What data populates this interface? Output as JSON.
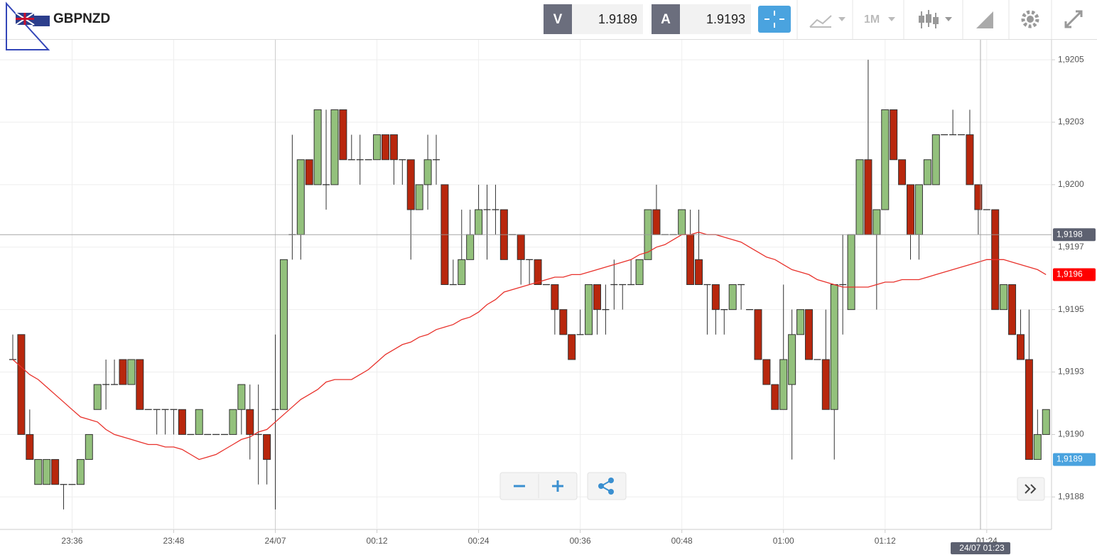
{
  "header": {
    "symbol": "GBPNZD",
    "bid_label": "V",
    "bid": 1.9189,
    "ask_label": "A",
    "ask": 1.9193,
    "timeframe": "1M"
  },
  "chart_data": {
    "type": "candlestick",
    "categories": [
      null,
      null,
      null,
      null,
      null,
      null,
      null,
      "23:36",
      null,
      null,
      null,
      null,
      null,
      null,
      null,
      null,
      null,
      null,
      null,
      "23:48",
      null,
      null,
      null,
      null,
      null,
      null,
      null,
      null,
      null,
      null,
      null,
      "24/07",
      null,
      null,
      null,
      null,
      null,
      null,
      null,
      null,
      null,
      null,
      null,
      "00:12",
      null,
      null,
      null,
      null,
      null,
      null,
      null,
      null,
      null,
      null,
      null,
      "00:24",
      null,
      null,
      null,
      null,
      null,
      null,
      null,
      null,
      null,
      null,
      null,
      "00:36",
      null,
      null,
      null,
      null,
      null,
      null,
      null,
      null,
      null,
      null,
      null,
      "00:48",
      null,
      null,
      null,
      null,
      null,
      null,
      null,
      null,
      null,
      null,
      null,
      "01:00",
      null,
      null,
      null,
      null,
      null,
      null,
      null,
      null,
      null,
      null,
      null,
      "01:12",
      null,
      null,
      null,
      null,
      null,
      null,
      null,
      null,
      null,
      null,
      null,
      "01:24",
      null,
      null,
      null,
      null,
      null,
      null,
      null
    ],
    "open": [
      1.9193,
      1.9194,
      1.919,
      1.9188,
      1.9188,
      1.9189,
      1.9188,
      1.9188,
      1.9188,
      1.9189,
      1.9191,
      1.9192,
      1.9192,
      1.9193,
      1.9192,
      1.9193,
      1.9191,
      1.9191,
      1.9191,
      1.9191,
      1.9191,
      1.919,
      1.919,
      1.919,
      1.919,
      1.919,
      1.919,
      1.9191,
      1.9191,
      1.919,
      1.919,
      1.9191,
      1.9191,
      1.9198,
      1.9198,
      1.9201,
      1.92,
      1.92,
      1.92,
      1.9203,
      1.9201,
      1.9201,
      1.9201,
      1.9201,
      1.9202,
      1.9202,
      1.9201,
      1.9201,
      1.9199,
      1.92,
      1.9201,
      1.92,
      1.9196,
      1.9196,
      1.9197,
      1.9198,
      1.9199,
      1.9199,
      1.9199,
      1.9198,
      1.9198,
      1.9197,
      1.9197,
      1.9196,
      1.9196,
      1.9195,
      1.9194,
      1.9194,
      1.9194,
      1.9196,
      1.9195,
      1.9196,
      1.9196,
      1.9196,
      1.9196,
      1.9197,
      1.9199,
      1.9198,
      1.9198,
      1.9198,
      1.9198,
      1.9197,
      1.9196,
      1.9196,
      1.9195,
      1.9195,
      1.9196,
      1.9195,
      1.9195,
      1.9193,
      1.9192,
      1.9191,
      1.9192,
      1.9194,
      1.9195,
      1.9193,
      1.9193,
      1.9191,
      1.9196,
      1.9195,
      1.9198,
      1.9201,
      1.9198,
      1.9199,
      1.9203,
      1.9201,
      1.92,
      1.9198,
      1.92,
      1.92,
      1.9202,
      1.9202,
      1.9202,
      1.9202,
      1.92,
      1.9199,
      1.9199,
      1.9195,
      1.9196,
      1.9194,
      1.9193,
      1.9189,
      1.919
    ],
    "high": [
      1.9194,
      1.9194,
      1.9191,
      1.9189,
      1.9189,
      1.9189,
      1.9188,
      1.9188,
      1.9189,
      1.919,
      1.9192,
      1.9193,
      1.9193,
      1.9193,
      1.9193,
      1.9193,
      1.9191,
      1.9191,
      1.9191,
      1.9191,
      1.9191,
      1.919,
      1.9191,
      1.919,
      1.919,
      1.919,
      1.9191,
      1.9192,
      1.9192,
      1.9192,
      1.919,
      1.9194,
      1.9197,
      1.9202,
      1.9201,
      1.9201,
      1.9203,
      1.9203,
      1.9203,
      1.9203,
      1.9202,
      1.9202,
      1.9201,
      1.9202,
      1.9202,
      1.9202,
      1.9201,
      1.9201,
      1.92,
      1.9202,
      1.9202,
      1.92,
      1.9197,
      1.9199,
      1.9199,
      1.92,
      1.92,
      1.92,
      1.9199,
      1.9198,
      1.9198,
      1.9197,
      1.9197,
      1.9196,
      1.9196,
      1.9195,
      1.9194,
      1.9195,
      1.9196,
      1.9196,
      1.9196,
      1.9197,
      1.9196,
      1.9197,
      1.9197,
      1.9199,
      1.92,
      1.9198,
      1.9198,
      1.9199,
      1.9199,
      1.9199,
      1.9196,
      1.9196,
      1.9195,
      1.9196,
      1.9196,
      1.9195,
      1.9195,
      1.9193,
      1.9192,
      1.9196,
      1.9195,
      1.9195,
      1.9195,
      1.9193,
      1.9195,
      1.9196,
      1.9198,
      1.9198,
      1.9201,
      1.9205,
      1.9199,
      1.9203,
      1.9203,
      1.9201,
      1.92,
      1.92,
      1.9201,
      1.9202,
      1.9202,
      1.9203,
      1.9202,
      1.9203,
      1.92,
      1.9199,
      1.9199,
      1.9196,
      1.9196,
      1.9195,
      1.9195,
      1.9191,
      1.9191
    ],
    "low": [
      1.9193,
      1.919,
      1.9189,
      1.9188,
      1.9188,
      1.9188,
      1.9187,
      1.9188,
      1.9188,
      1.9189,
      1.9191,
      1.9191,
      1.9192,
      1.9192,
      1.9192,
      1.9191,
      1.9191,
      1.919,
      1.919,
      1.919,
      1.919,
      1.919,
      1.919,
      1.919,
      1.919,
      1.919,
      1.919,
      1.919,
      1.9189,
      1.9188,
      1.9188,
      1.9187,
      1.9191,
      1.9197,
      1.9197,
      1.92,
      1.92,
      1.9199,
      1.92,
      1.9201,
      1.9201,
      1.92,
      1.9201,
      1.9201,
      1.9201,
      1.92,
      1.92,
      1.9197,
      1.9199,
      1.9199,
      1.92,
      1.9196,
      1.9196,
      1.9196,
      1.9197,
      1.9198,
      1.9197,
      1.9198,
      1.9197,
      1.9198,
      1.9196,
      1.9196,
      1.9196,
      1.9196,
      1.9194,
      1.9194,
      1.9193,
      1.9194,
      1.9194,
      1.9194,
      1.9194,
      1.9195,
      1.9195,
      1.9196,
      1.9196,
      1.9197,
      1.9198,
      1.9198,
      1.9198,
      1.9198,
      1.9196,
      1.9196,
      1.9194,
      1.9194,
      1.9194,
      1.9195,
      1.9195,
      1.9195,
      1.9193,
      1.9192,
      1.9191,
      1.9191,
      1.9189,
      1.9194,
      1.9193,
      1.9193,
      1.9191,
      1.9189,
      1.9194,
      1.9195,
      1.9198,
      1.9198,
      1.9195,
      1.9199,
      1.9201,
      1.92,
      1.9197,
      1.9197,
      1.92,
      1.92,
      1.9202,
      1.9202,
      1.9202,
      1.92,
      1.9198,
      1.9199,
      1.9195,
      1.9195,
      1.9194,
      1.9193,
      1.9189,
      1.9189,
      1.919
    ],
    "close": [
      1.9193,
      1.919,
      1.9189,
      1.9189,
      1.9189,
      1.9188,
      1.9188,
      1.9188,
      1.9189,
      1.919,
      1.9192,
      1.9192,
      1.9192,
      1.9192,
      1.9193,
      1.9191,
      1.9191,
      1.9191,
      1.9191,
      1.9191,
      1.919,
      1.919,
      1.9191,
      1.919,
      1.919,
      1.919,
      1.9191,
      1.9192,
      1.919,
      1.919,
      1.9189,
      1.9191,
      1.9197,
      1.9198,
      1.9201,
      1.92,
      1.9203,
      1.92,
      1.9203,
      1.9201,
      1.9201,
      1.9201,
      1.9201,
      1.9202,
      1.9201,
      1.9201,
      1.9201,
      1.9199,
      1.92,
      1.9201,
      1.9201,
      1.9196,
      1.9196,
      1.9197,
      1.9198,
      1.9199,
      1.9199,
      1.9199,
      1.9197,
      1.9198,
      1.9197,
      1.9197,
      1.9196,
      1.9196,
      1.9195,
      1.9194,
      1.9193,
      1.9194,
      1.9196,
      1.9195,
      1.9195,
      1.9196,
      1.9196,
      1.9196,
      1.9197,
      1.9199,
      1.9198,
      1.9198,
      1.9198,
      1.9199,
      1.9196,
      1.9196,
      1.9196,
      1.9195,
      1.9195,
      1.9196,
      1.9196,
      1.9195,
      1.9193,
      1.9192,
      1.9191,
      1.9193,
      1.9194,
      1.9195,
      1.9193,
      1.9193,
      1.9191,
      1.9196,
      1.9196,
      1.9198,
      1.9201,
      1.9198,
      1.9199,
      1.9203,
      1.9201,
      1.92,
      1.9198,
      1.92,
      1.9201,
      1.9202,
      1.9202,
      1.9202,
      1.9202,
      1.92,
      1.9199,
      1.9199,
      1.9195,
      1.9196,
      1.9194,
      1.9193,
      1.9189,
      1.919,
      1.9191
    ],
    "up_color": "#93c17c",
    "down_color": "#b8270d",
    "moving_average": {
      "color": "#e8302a",
      "values": [
        1.9193,
        1.91927,
        1.91924,
        1.91922,
        1.91919,
        1.91916,
        1.91913,
        1.9191,
        1.91907,
        1.91906,
        1.91905,
        1.91902,
        1.919,
        1.91899,
        1.91898,
        1.91897,
        1.91896,
        1.91896,
        1.91895,
        1.91895,
        1.91894,
        1.91892,
        1.9189,
        1.91891,
        1.91892,
        1.91894,
        1.91896,
        1.91898,
        1.91899,
        1.91901,
        1.91902,
        1.91905,
        1.91908,
        1.91911,
        1.91914,
        1.91916,
        1.91918,
        1.91921,
        1.91922,
        1.91922,
        1.91922,
        1.91924,
        1.91926,
        1.91929,
        1.91932,
        1.91934,
        1.91936,
        1.91937,
        1.91939,
        1.9194,
        1.91942,
        1.91943,
        1.91944,
        1.91946,
        1.91947,
        1.91949,
        1.91952,
        1.91954,
        1.91957,
        1.91958,
        1.91959,
        1.9196,
        1.91961,
        1.91962,
        1.91963,
        1.91963,
        1.91964,
        1.91964,
        1.91965,
        1.91966,
        1.91967,
        1.91968,
        1.91969,
        1.9197,
        1.91972,
        1.91973,
        1.91975,
        1.91976,
        1.91978,
        1.9198,
        1.9198,
        1.91981,
        1.9198,
        1.9198,
        1.91979,
        1.91978,
        1.91977,
        1.91975,
        1.91973,
        1.91971,
        1.9197,
        1.91968,
        1.91966,
        1.91965,
        1.91964,
        1.91962,
        1.91961,
        1.9196,
        1.91959,
        1.91959,
        1.91959,
        1.91959,
        1.9196,
        1.91961,
        1.91961,
        1.91962,
        1.91962,
        1.91962,
        1.91963,
        1.91964,
        1.91965,
        1.91966,
        1.91967,
        1.91968,
        1.91969,
        1.9197,
        1.9197,
        1.9197,
        1.91969,
        1.91968,
        1.91967,
        1.91966,
        1.91964
      ]
    },
    "ma_label": "1,9196",
    "last_price": {
      "value": 1.9189,
      "label": "1,9189"
    },
    "crosshair": {
      "price": {
        "value": 1.9198,
        "label": "1,9198"
      },
      "time_label": "24/07 01:23"
    },
    "ylim": [
      1.91862,
      1.92058
    ],
    "yticks": [
      {
        "value": 1.9205,
        "label": "1,9205"
      },
      {
        "value": 1.92025,
        "label": "1,9203"
      },
      {
        "value": 1.92,
        "label": "1,9200"
      },
      {
        "value": 1.91975,
        "label": "1,9197"
      },
      {
        "value": 1.9195,
        "label": "1,9195"
      },
      {
        "value": 1.91925,
        "label": "1,9193"
      },
      {
        "value": 1.919,
        "label": "1,9190"
      },
      {
        "value": 1.91875,
        "label": "1,9188"
      }
    ],
    "grid": true
  }
}
